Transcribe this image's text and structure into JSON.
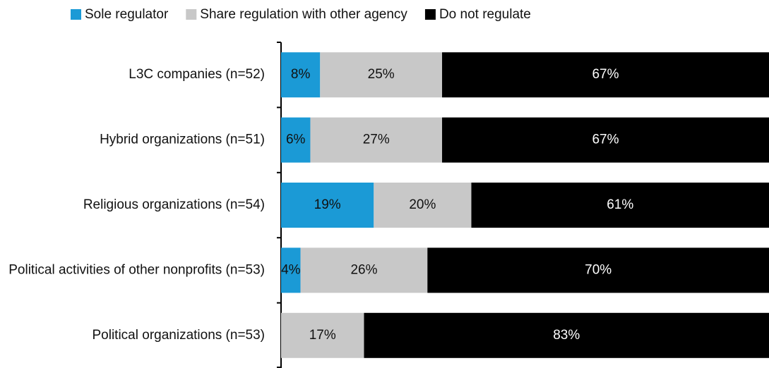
{
  "chart_data": {
    "type": "stacked-bar-horizontal",
    "categories": [
      "L3C companies (n=52)",
      "Hybrid organizations (n=51)",
      "Religious organizations (n=54)",
      "Political activities of other nonprofits (n=53)",
      "Political organizations (n=53)"
    ],
    "xlim": [
      0,
      100
    ],
    "series": [
      {
        "name": "Sole regulator",
        "color": "#1b9ad6",
        "label_color": "#111111",
        "values": [
          8,
          6,
          19,
          4,
          null
        ],
        "value_labels": [
          "8%",
          "6%",
          "19%",
          "4%",
          null
        ]
      },
      {
        "name": "Share regulation with other agency",
        "color": "#c8c8c8",
        "label_color": "#111111",
        "values": [
          25,
          27,
          20,
          26,
          17
        ],
        "value_labels": [
          "25%",
          "27%",
          "20%",
          "26%",
          "17%"
        ]
      },
      {
        "name": "Do not regulate",
        "color": "#000000",
        "label_color": "#ffffff",
        "values": [
          67,
          67,
          61,
          70,
          83
        ],
        "value_labels": [
          "67%",
          "67%",
          "61%",
          "70%",
          "83%"
        ]
      }
    ]
  }
}
